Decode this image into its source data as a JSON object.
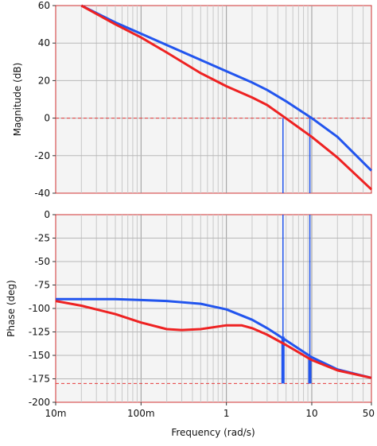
{
  "chart_data": [
    {
      "type": "line",
      "id": "magnitude",
      "xlabel": "",
      "ylabel": "Magnitude (dB)",
      "x_scale": "log",
      "xlim": [
        0.01,
        50
      ],
      "ylim": [
        -40,
        60
      ],
      "yticks": [
        60,
        40,
        20,
        0,
        -20,
        -40
      ],
      "ytick_labels": [
        "60",
        "40",
        "20",
        "0",
        "-20",
        "-40"
      ],
      "grid": true,
      "reference_line": {
        "y": 0,
        "style": "dashed",
        "color": "#e63b3b"
      },
      "crossover_markers": [
        {
          "x": 4.6,
          "color": "#2255ee"
        },
        {
          "x": 9.5,
          "color": "#2255ee"
        }
      ],
      "series": [
        {
          "color": "#2255ee",
          "x": [
            0.02,
            0.05,
            0.1,
            0.2,
            0.5,
            1,
            2,
            3,
            5,
            10,
            20,
            50
          ],
          "y": [
            60,
            51,
            45,
            39,
            31,
            25,
            19,
            15,
            9,
            0,
            -10,
            -28
          ]
        },
        {
          "color": "#ee2222",
          "x": [
            0.02,
            0.05,
            0.1,
            0.2,
            0.5,
            1,
            2,
            3,
            4.6,
            10,
            20,
            50
          ],
          "y": [
            60,
            50,
            43,
            35,
            24,
            17,
            11,
            7,
            1,
            -10,
            -21,
            -38
          ]
        }
      ]
    },
    {
      "type": "line",
      "id": "phase",
      "xlabel": "Frequency (rad/s)",
      "ylabel": "Phase (deg)",
      "x_scale": "log",
      "xlim": [
        0.01,
        50
      ],
      "ylim": [
        -200,
        0
      ],
      "yticks": [
        0,
        -25,
        -50,
        -75,
        -100,
        -125,
        -150,
        -175,
        -200
      ],
      "ytick_labels": [
        "0",
        "-25",
        "-50",
        "-75",
        "-100",
        "-125",
        "-150",
        "-175",
        "-200"
      ],
      "xticks": [
        0.01,
        0.1,
        1,
        10,
        50
      ],
      "xtick_labels": [
        "10m",
        "100m",
        "1",
        "10",
        "50"
      ],
      "grid": true,
      "reference_line": {
        "y": -180,
        "style": "dashed",
        "color": "#e63b3b"
      },
      "crossover_markers": [
        {
          "x": 4.6,
          "color": "#2255ee",
          "y_from": -130,
          "y_to": -180
        },
        {
          "x": 9.5,
          "color": "#2255ee",
          "y_from": -152,
          "y_to": -180
        }
      ],
      "series": [
        {
          "color": "#2255ee",
          "x": [
            0.01,
            0.02,
            0.05,
            0.1,
            0.2,
            0.5,
            1,
            2,
            3,
            5,
            10,
            20,
            50
          ],
          "y": [
            -90,
            -90,
            -90,
            -91,
            -92,
            -95,
            -101,
            -112,
            -121,
            -134,
            -152,
            -165,
            -174
          ]
        },
        {
          "color": "#ee2222",
          "x": [
            0.01,
            0.02,
            0.05,
            0.1,
            0.2,
            0.3,
            0.5,
            1,
            1.5,
            2,
            3,
            5,
            10,
            20,
            50
          ],
          "y": [
            -92,
            -97,
            -106,
            -115,
            -122,
            -123,
            -122,
            -118,
            -118,
            -121,
            -128,
            -139,
            -155,
            -166,
            -174
          ]
        }
      ]
    }
  ]
}
